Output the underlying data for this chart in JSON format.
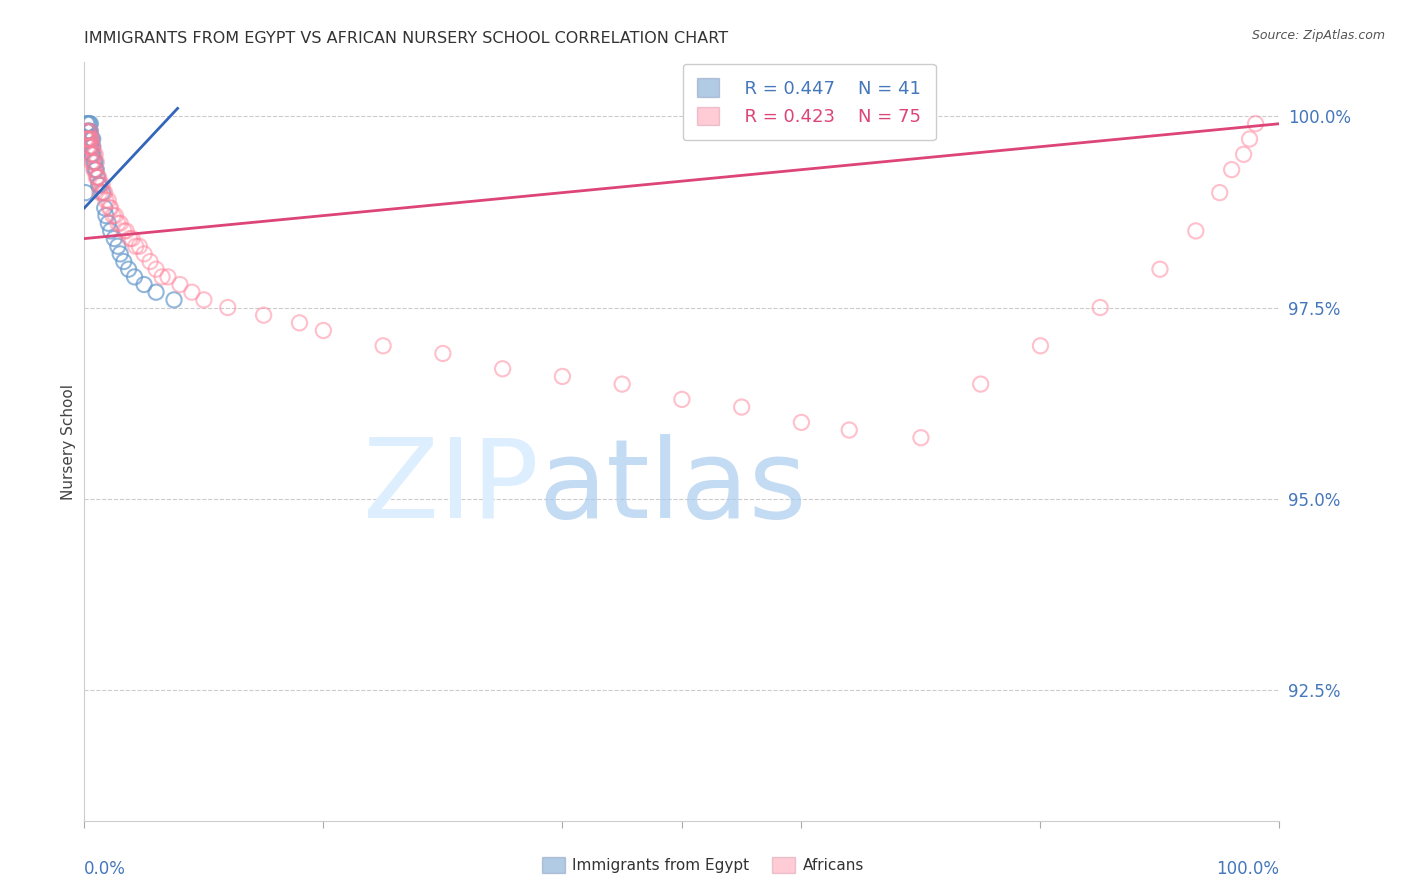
{
  "title": "IMMIGRANTS FROM EGYPT VS AFRICAN NURSERY SCHOOL CORRELATION CHART",
  "source": "Source: ZipAtlas.com",
  "ylabel": "Nursery School",
  "ytick_labels": [
    "100.0%",
    "97.5%",
    "95.0%",
    "92.5%"
  ],
  "ytick_values": [
    1.0,
    0.975,
    0.95,
    0.925
  ],
  "xlim": [
    0.0,
    1.0
  ],
  "ylim": [
    0.908,
    1.007
  ],
  "legend_blue_r": "R = 0.447",
  "legend_blue_n": "N = 41",
  "legend_pink_r": "R = 0.423",
  "legend_pink_n": "N = 75",
  "blue_color": "#6699CC",
  "pink_color": "#FF8099",
  "blue_line_color": "#3366BB",
  "pink_line_color": "#DD4477",
  "background_color": "#ffffff",
  "grid_color": "#cccccc",
  "title_color": "#333333",
  "label_color": "#4477BB",
  "blue_x": [
    0.001,
    0.002,
    0.002,
    0.003,
    0.003,
    0.003,
    0.004,
    0.004,
    0.004,
    0.004,
    0.005,
    0.005,
    0.005,
    0.005,
    0.006,
    0.006,
    0.006,
    0.007,
    0.007,
    0.007,
    0.008,
    0.009,
    0.009,
    0.01,
    0.011,
    0.012,
    0.013,
    0.015,
    0.017,
    0.018,
    0.02,
    0.022,
    0.025,
    0.028,
    0.03,
    0.033,
    0.037,
    0.042,
    0.05,
    0.06,
    0.075
  ],
  "blue_y": [
    0.99,
    0.999,
    0.998,
    0.999,
    0.998,
    0.997,
    0.999,
    0.998,
    0.998,
    0.997,
    0.999,
    0.998,
    0.997,
    0.996,
    0.997,
    0.996,
    0.995,
    0.997,
    0.996,
    0.995,
    0.994,
    0.994,
    0.993,
    0.993,
    0.992,
    0.991,
    0.991,
    0.99,
    0.988,
    0.987,
    0.986,
    0.985,
    0.984,
    0.983,
    0.982,
    0.981,
    0.98,
    0.979,
    0.978,
    0.977,
    0.976
  ],
  "pink_x": [
    0.001,
    0.002,
    0.002,
    0.003,
    0.003,
    0.003,
    0.004,
    0.004,
    0.005,
    0.005,
    0.005,
    0.006,
    0.006,
    0.006,
    0.007,
    0.007,
    0.008,
    0.008,
    0.009,
    0.009,
    0.01,
    0.01,
    0.011,
    0.012,
    0.013,
    0.013,
    0.015,
    0.016,
    0.017,
    0.018,
    0.02,
    0.021,
    0.022,
    0.024,
    0.026,
    0.028,
    0.03,
    0.033,
    0.035,
    0.038,
    0.04,
    0.043,
    0.046,
    0.05,
    0.055,
    0.06,
    0.065,
    0.07,
    0.08,
    0.09,
    0.1,
    0.12,
    0.15,
    0.18,
    0.2,
    0.25,
    0.3,
    0.35,
    0.4,
    0.45,
    0.5,
    0.55,
    0.6,
    0.64,
    0.7,
    0.75,
    0.8,
    0.85,
    0.9,
    0.93,
    0.95,
    0.96,
    0.97,
    0.975,
    0.98
  ],
  "pink_y": [
    0.997,
    0.998,
    0.997,
    0.998,
    0.997,
    0.996,
    0.997,
    0.996,
    0.998,
    0.997,
    0.995,
    0.997,
    0.996,
    0.994,
    0.996,
    0.994,
    0.995,
    0.993,
    0.995,
    0.993,
    0.994,
    0.992,
    0.992,
    0.992,
    0.991,
    0.99,
    0.991,
    0.99,
    0.99,
    0.989,
    0.989,
    0.988,
    0.988,
    0.987,
    0.987,
    0.986,
    0.986,
    0.985,
    0.985,
    0.984,
    0.984,
    0.983,
    0.983,
    0.982,
    0.981,
    0.98,
    0.979,
    0.979,
    0.978,
    0.977,
    0.976,
    0.975,
    0.974,
    0.973,
    0.972,
    0.97,
    0.969,
    0.967,
    0.966,
    0.965,
    0.963,
    0.962,
    0.96,
    0.959,
    0.958,
    0.965,
    0.97,
    0.975,
    0.98,
    0.985,
    0.99,
    0.993,
    0.995,
    0.997,
    0.999
  ],
  "blue_trend_x": [
    0.0,
    0.078
  ],
  "blue_trend_y": [
    0.988,
    1.001
  ],
  "pink_trend_x": [
    0.0,
    1.0
  ],
  "pink_trend_y": [
    0.984,
    0.999
  ]
}
